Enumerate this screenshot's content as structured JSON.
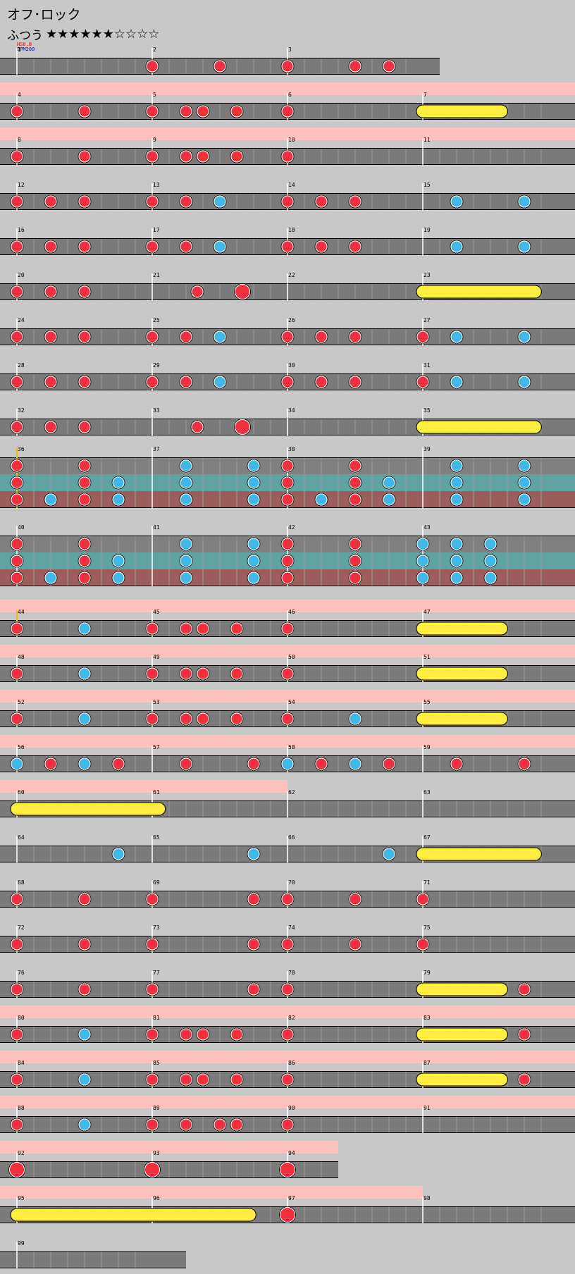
{
  "song": {
    "title": "オフ･ロック",
    "difficulty_label": "ふつう",
    "stars": "★★★★★★☆☆☆☆",
    "hs": "HS0.8",
    "bpm": "BPM200"
  },
  "colors": {
    "background": "#c8c8c8",
    "lane": "#7a7a7a",
    "gogo": "#ffc0c0",
    "don": "#f0303c",
    "ka": "#40b8e8",
    "roll": "#ffee40",
    "branch_mid": "#5fa3a0",
    "branch_master": "#9e5d5d",
    "branch_normal": "#808080"
  },
  "chart_data": {
    "type": "taiko-chart",
    "note_legend": {
      "d": "don",
      "k": "ka",
      "D": "big-don",
      "r": "roll"
    },
    "rows": [
      {
        "measures": [
          {
            "n": 1,
            "notes": ""
          },
          {
            "n": 2,
            "notes": "d.d."
          },
          {
            "n": 3,
            "notes": "d.dd"
          }
        ]
      },
      {
        "gogo": true,
        "measures": [
          {
            "n": 4,
            "notes": "d.d."
          },
          {
            "n": 5,
            "notes": "d.dd.d.."
          },
          {
            "n": 6,
            "notes": "d..."
          },
          {
            "n": 7,
            "notes": "",
            "roll": [
              0,
              0.58
            ]
          }
        ]
      },
      {
        "gogo": true,
        "measures": [
          {
            "n": 8,
            "notes": "d.d."
          },
          {
            "n": 9,
            "notes": "d.dd.d.."
          },
          {
            "n": 10,
            "notes": "d..."
          },
          {
            "n": 11,
            "notes": ""
          }
        ]
      },
      {
        "measures": [
          {
            "n": 12,
            "notes": "ddd."
          },
          {
            "n": 13,
            "notes": "ddk."
          },
          {
            "n": 14,
            "notes": "ddd."
          },
          {
            "n": 15,
            "notes": ".k.k"
          }
        ]
      },
      {
        "measures": [
          {
            "n": 16,
            "notes": "ddd."
          },
          {
            "n": 17,
            "notes": "ddk."
          },
          {
            "n": 18,
            "notes": "ddd."
          },
          {
            "n": 19,
            "notes": ".k.k"
          }
        ]
      },
      {
        "measures": [
          {
            "n": 20,
            "notes": "ddd."
          },
          {
            "n": 21,
            "notes": "..d.D."
          },
          {
            "n": 22,
            "notes": ""
          },
          {
            "n": 23,
            "notes": "",
            "roll": [
              0,
              0.83
            ]
          }
        ]
      },
      {
        "measures": [
          {
            "n": 24,
            "notes": "ddd."
          },
          {
            "n": 25,
            "notes": "ddk."
          },
          {
            "n": 26,
            "notes": "ddd."
          },
          {
            "n": 27,
            "notes": "dk.k"
          }
        ]
      },
      {
        "measures": [
          {
            "n": 28,
            "notes": "ddd."
          },
          {
            "n": 29,
            "notes": "ddk."
          },
          {
            "n": 30,
            "notes": "ddd."
          },
          {
            "n": 31,
            "notes": "dk.k"
          }
        ]
      },
      {
        "measures": [
          {
            "n": 32,
            "notes": "ddd."
          },
          {
            "n": 33,
            "notes": "..d.D."
          },
          {
            "n": 34,
            "notes": ""
          },
          {
            "n": 35,
            "notes": "",
            "roll": [
              0,
              0.83
            ]
          }
        ]
      },
      {
        "branch": true,
        "lanes": [
          [
            {
              "n": 36,
              "notes": "d.d."
            },
            {
              "n": 37,
              "notes": ".k.k"
            },
            {
              "n": 38,
              "notes": "d.d."
            },
            {
              "n": 39,
              "notes": ".k.k"
            }
          ],
          [
            {
              "n": 36,
              "notes": "d.dk"
            },
            {
              "n": 37,
              "notes": ".k.k"
            },
            {
              "n": 38,
              "notes": "d.dk"
            },
            {
              "n": 39,
              "notes": ".k.k"
            }
          ],
          [
            {
              "n": 36,
              "notes": "dkdk"
            },
            {
              "n": 37,
              "notes": ".k.k"
            },
            {
              "n": 38,
              "notes": "dkdk"
            },
            {
              "n": 39,
              "notes": ".k.k"
            }
          ]
        ]
      },
      {
        "branch": true,
        "lanes": [
          [
            {
              "n": 40,
              "notes": "d.d."
            },
            {
              "n": 41,
              "notes": ".k.k"
            },
            {
              "n": 42,
              "notes": "d.d."
            },
            {
              "n": 43,
              "notes": "kkk."
            }
          ],
          [
            {
              "n": 40,
              "notes": "d.dk"
            },
            {
              "n": 41,
              "notes": ".k.k"
            },
            {
              "n": 42,
              "notes": "d.d."
            },
            {
              "n": 43,
              "notes": "kkk."
            }
          ],
          [
            {
              "n": 40,
              "notes": "dkdk"
            },
            {
              "n": 41,
              "notes": ".k.k"
            },
            {
              "n": 42,
              "notes": "d.d."
            },
            {
              "n": 43,
              "notes": "kkk."
            }
          ]
        ]
      },
      {
        "gogo": true,
        "measures": [
          {
            "n": 44,
            "notes": "d.k."
          },
          {
            "n": 45,
            "notes": "d.dd.d.."
          },
          {
            "n": 46,
            "notes": "d..."
          },
          {
            "n": 47,
            "notes": "",
            "roll": [
              0,
              0.58
            ]
          }
        ]
      },
      {
        "gogo": true,
        "measures": [
          {
            "n": 48,
            "notes": "d.k."
          },
          {
            "n": 49,
            "notes": "d.dd.d.."
          },
          {
            "n": 50,
            "notes": "d..."
          },
          {
            "n": 51,
            "notes": "",
            "roll": [
              0,
              0.58
            ]
          }
        ]
      },
      {
        "gogo": true,
        "measures": [
          {
            "n": 52,
            "notes": "d.k."
          },
          {
            "n": 53,
            "notes": "d.dd.d.."
          },
          {
            "n": 54,
            "notes": "d.k."
          },
          {
            "n": 55,
            "notes": "",
            "roll": [
              0,
              0.58
            ]
          }
        ]
      },
      {
        "gogo": true,
        "measures": [
          {
            "n": 56,
            "notes": "kdkd"
          },
          {
            "n": 57,
            "notes": ".d.d"
          },
          {
            "n": 58,
            "notes": "kdkd"
          },
          {
            "n": 59,
            "notes": ".d.d"
          }
        ]
      },
      {
        "gogo_to": 2,
        "measures": [
          {
            "n": 60,
            "notes": "",
            "roll": [
              0,
              1.05
            ]
          },
          {
            "n": 61,
            "notes": ""
          },
          {
            "n": 62,
            "notes": ""
          },
          {
            "n": 63,
            "notes": ""
          }
        ]
      },
      {
        "measures": [
          {
            "n": 64,
            "notes": "...k"
          },
          {
            "n": 65,
            "notes": "...k"
          },
          {
            "n": 66,
            "notes": "...k"
          },
          {
            "n": 67,
            "notes": "",
            "roll": [
              0,
              0.83
            ]
          }
        ]
      },
      {
        "measures": [
          {
            "n": 68,
            "notes": "d.d."
          },
          {
            "n": 69,
            "notes": "d..d"
          },
          {
            "n": 70,
            "notes": "d.d."
          },
          {
            "n": 71,
            "notes": "d..."
          }
        ]
      },
      {
        "measures": [
          {
            "n": 72,
            "notes": "d.d."
          },
          {
            "n": 73,
            "notes": "d..d"
          },
          {
            "n": 74,
            "notes": "d.d."
          },
          {
            "n": 75,
            "notes": "d..."
          }
        ]
      },
      {
        "measures": [
          {
            "n": 76,
            "notes": "d.d."
          },
          {
            "n": 77,
            "notes": "d..d"
          },
          {
            "n": 78,
            "notes": "d..."
          },
          {
            "n": 79,
            "notes": "...d",
            "roll": [
              0,
              0.58
            ]
          }
        ]
      },
      {
        "gogo": true,
        "measures": [
          {
            "n": 80,
            "notes": "d.k."
          },
          {
            "n": 81,
            "notes": "d.dd.d.."
          },
          {
            "n": 82,
            "notes": "d..."
          },
          {
            "n": 83,
            "notes": "...d",
            "roll": [
              0,
              0.58
            ]
          }
        ]
      },
      {
        "gogo": true,
        "measures": [
          {
            "n": 84,
            "notes": "d.k."
          },
          {
            "n": 85,
            "notes": "d.dd.d.."
          },
          {
            "n": 86,
            "notes": "d..."
          },
          {
            "n": 87,
            "notes": "...d",
            "roll": [
              0,
              0.58
            ]
          }
        ]
      },
      {
        "gogo": true,
        "measures": [
          {
            "n": 88,
            "notes": "d.k."
          },
          {
            "n": 89,
            "notes": "d.d.dd.."
          },
          {
            "n": 90,
            "notes": "d..."
          },
          {
            "n": 91,
            "notes": ""
          }
        ]
      },
      {
        "gogo": true,
        "short": true,
        "measures": [
          {
            "n": 92,
            "notes": "D..."
          },
          {
            "n": 93,
            "notes": "D..."
          },
          {
            "n": 94,
            "notes": "D."
          }
        ]
      },
      {
        "gogo_to": 3,
        "measures": [
          {
            "n": 95,
            "notes": "",
            "roll": [
              0,
              1.72
            ]
          },
          {
            "n": 96,
            "notes": ""
          },
          {
            "n": 97,
            "notes": "D..."
          },
          {
            "n": 98,
            "notes": ""
          }
        ]
      },
      {
        "measures": [
          {
            "n": 99,
            "notes": ""
          }
        ]
      }
    ]
  }
}
